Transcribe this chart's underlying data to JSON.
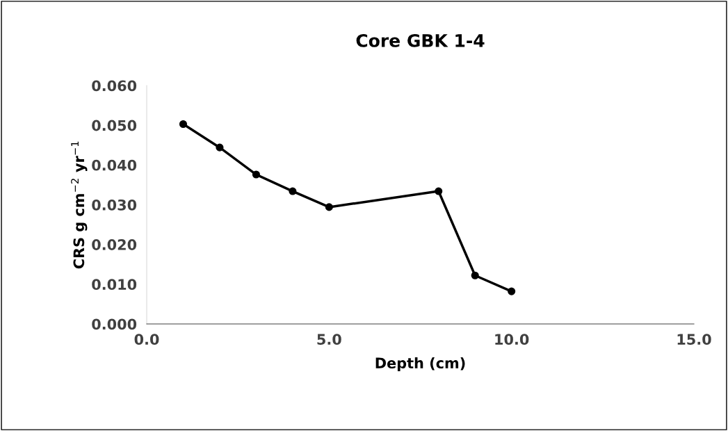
{
  "chart_data": {
    "type": "line",
    "title": "Core GBK 1-4",
    "xlabel": "Depth (cm)",
    "ylabel": "CRS g cm$^{−2}$ yr$^{−1}$",
    "x": [
      1,
      2,
      3,
      4,
      5,
      8,
      9,
      10
    ],
    "series": [
      {
        "color": "#000000",
        "values": [
          0.0503,
          0.0444,
          0.0376,
          0.0334,
          0.0294,
          0.0334,
          0.0122,
          0.0082
        ]
      }
    ],
    "xlim": [
      0,
      15
    ],
    "xticks": [
      {
        "value": 0,
        "label": "0.0"
      },
      {
        "value": 5,
        "label": "5.0"
      },
      {
        "value": 10,
        "label": "10.0"
      },
      {
        "value": 15,
        "label": "15.0"
      }
    ],
    "ylim": [
      0,
      0.06
    ],
    "yticks": [
      {
        "value": 0,
        "label": "0.000"
      },
      {
        "value": 0.01,
        "label": "0.010"
      },
      {
        "value": 0.02,
        "label": "0.020"
      },
      {
        "value": 0.03,
        "label": "0.030"
      },
      {
        "value": 0.04,
        "label": "0.040"
      },
      {
        "value": 0.05,
        "label": "0.050"
      },
      {
        "value": 0.06,
        "label": "0.060"
      }
    ],
    "grid": false,
    "legend": false,
    "marker": "circle",
    "line_style": "solid"
  }
}
